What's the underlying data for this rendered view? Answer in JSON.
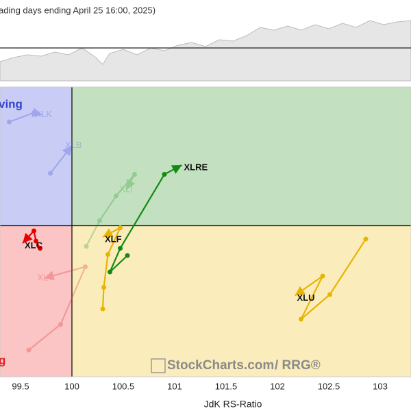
{
  "chart_data": {
    "type": "rrg",
    "subtitle": "ading days ending April 25 16:00, 2025)",
    "x_label": "JdK RS-Ratio",
    "xlim": [
      99.3,
      103.3
    ],
    "ylim": [
      98.53,
      101.35
    ],
    "xticks": [
      99.5,
      100,
      100.5,
      101,
      101.5,
      102,
      102.5,
      103
    ],
    "center": 100,
    "quadrant_labels": [
      "ving",
      "g"
    ],
    "watermark": [
      "StockCharts.com",
      "/ RRG®"
    ],
    "series": [
      {
        "name": "XLK",
        "color": "#3f4fd8",
        "faded": true,
        "x": [
          99.39,
          99.63,
          99.71
        ],
        "y": [
          101.01,
          101.1,
          101.08
        ]
      },
      {
        "name": "XLB",
        "color": "#3f4fd8",
        "faded": true,
        "x": [
          99.79,
          100.0
        ],
        "y": [
          100.51,
          100.78
        ]
      },
      {
        "name": "XLI",
        "color": "#2a9a2a",
        "faded": true,
        "x": [
          100.14,
          100.27,
          100.43,
          100.61,
          100.53
        ],
        "y": [
          99.8,
          100.05,
          100.29,
          100.5,
          100.35
        ]
      },
      {
        "name": "XLY",
        "color": "#e03030",
        "faded": true,
        "x": [
          99.58,
          99.89,
          100.13,
          99.73
        ],
        "y": [
          98.79,
          99.04,
          99.6,
          99.49
        ]
      },
      {
        "name": "XLRE",
        "color": "#138a13",
        "faded": false,
        "x": [
          100.54,
          100.37,
          100.47,
          100.9,
          101.07
        ],
        "y": [
          99.71,
          99.55,
          99.78,
          100.5,
          100.59
        ]
      },
      {
        "name": "XLF",
        "color": "#e8b400",
        "faded": false,
        "x": [
          100.3,
          100.31,
          100.35,
          100.47,
          100.3
        ],
        "y": [
          99.19,
          99.4,
          99.72,
          99.98,
          99.89
        ]
      },
      {
        "name": "XLU",
        "color": "#e8b400",
        "faded": false,
        "x": [
          102.86,
          102.51,
          102.23,
          102.44,
          102.17
        ],
        "y": [
          99.87,
          99.33,
          99.09,
          99.51,
          99.32
        ]
      },
      {
        "name": "XLC",
        "color": "#e60000",
        "faded": false,
        "x": [
          99.69,
          99.65,
          99.63,
          99.52
        ],
        "y": [
          99.78,
          99.85,
          99.95,
          99.83
        ]
      }
    ]
  }
}
